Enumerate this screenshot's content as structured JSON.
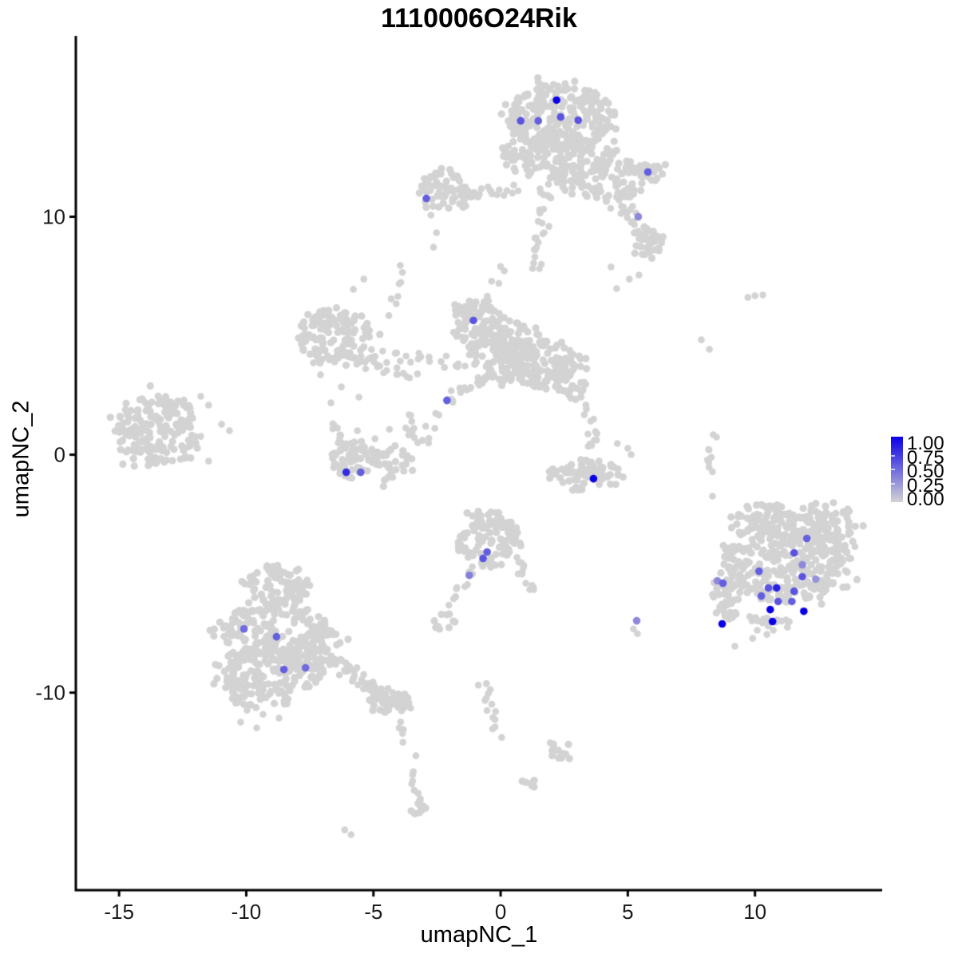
{
  "chart_data": {
    "type": "scatter",
    "title": "1110006O24Rik",
    "xlabel": "umapNC_1",
    "ylabel": "umapNC_2",
    "xlim": [
      -16.7,
      15.0
    ],
    "ylim": [
      -18.3,
      17.6
    ],
    "xticks": [
      "-15",
      "-10",
      "-5",
      "0",
      "5",
      "10"
    ],
    "xtick_values": [
      -15,
      -10,
      -5,
      0,
      5,
      10
    ],
    "yticks": [
      "-10",
      "0",
      "10"
    ],
    "ytick_values": [
      -10,
      0,
      10
    ],
    "grid": "off",
    "legend": {
      "position": "right",
      "tick_labels": [
        "1.00",
        "0.75",
        "0.50",
        "0.25",
        "0.00"
      ],
      "tick_values": [
        1.0,
        0.75,
        0.5,
        0.25,
        0.0
      ]
    },
    "colors": {
      "low": "#d3d3d3",
      "high": "#0a00e8",
      "axis": "#000000",
      "background": "#ffffff"
    },
    "background_clusters": [
      {
        "t": "blob",
        "x": 2.39,
        "y": 14.09,
        "rx": 2.14,
        "ry": 1.51,
        "n": 260
      },
      {
        "t": "blob",
        "x": 2.3,
        "y": 12.58,
        "rx": 2.36,
        "ry": 1.01,
        "n": 130
      },
      {
        "t": "blob",
        "x": 4.03,
        "y": 11.58,
        "rx": 1.73,
        "ry": 0.94,
        "n": 90
      },
      {
        "t": "blob",
        "x": 5.82,
        "y": 11.91,
        "rx": 0.63,
        "ry": 0.47,
        "n": 22
      },
      {
        "t": "chain",
        "x1": 4.5,
        "y1": 10.74,
        "x2": 6.23,
        "y2": 8.56,
        "n": 30,
        "j": 0.35
      },
      {
        "t": "blob",
        "x": 5.75,
        "y": 8.89,
        "rx": 0.69,
        "ry": 0.67,
        "n": 28
      },
      {
        "t": "dots",
        "pts": [
          [
            4.34,
            7.89
          ],
          [
            5.06,
            7.38
          ],
          [
            4.56,
            6.98
          ],
          [
            5.44,
            7.55
          ]
        ]
      },
      {
        "t": "chain",
        "x1": 1.82,
        "y1": 11.41,
        "x2": 1.42,
        "y2": 7.72,
        "n": 26,
        "j": 0.28
      },
      {
        "t": "chain",
        "x1": -2.11,
        "y1": 10.97,
        "x2": 0.57,
        "y2": 11.14,
        "n": 26,
        "j": 0.22
      },
      {
        "t": "blob",
        "x": -2.17,
        "y": 11.17,
        "rx": 1.13,
        "ry": 0.87,
        "n": 60
      },
      {
        "t": "dots",
        "pts": [
          [
            -2.74,
            10.07
          ],
          [
            -2.52,
            9.33
          ],
          [
            -2.64,
            8.72
          ]
        ]
      },
      {
        "t": "blob",
        "x": -0.91,
        "y": 5.54,
        "rx": 1.01,
        "ry": 1.01,
        "n": 90
      },
      {
        "t": "blob",
        "x": 0.03,
        "y": 4.09,
        "rx": 1.42,
        "ry": 1.01,
        "n": 100
      },
      {
        "t": "blob",
        "x": 1.76,
        "y": 3.76,
        "rx": 1.32,
        "ry": 1.01,
        "n": 90
      },
      {
        "t": "blob",
        "x": 0.75,
        "y": 4.87,
        "rx": 1.1,
        "ry": 0.74,
        "n": 45
      },
      {
        "t": "blob",
        "x": 2.8,
        "y": 3.36,
        "rx": 0.79,
        "ry": 1.07,
        "n": 40
      },
      {
        "t": "chain",
        "x1": 3.4,
        "y1": 2.18,
        "x2": 3.62,
        "y2": 0.4,
        "n": 8,
        "j": 0.2
      },
      {
        "t": "chain",
        "x1": -2.11,
        "y1": 2.28,
        "x2": -0.6,
        "y2": 3.29,
        "n": 20,
        "j": 0.25
      },
      {
        "t": "chain",
        "x1": -2.48,
        "y1": 1.68,
        "x2": -3.11,
        "y2": 0.47,
        "n": 7,
        "j": 0.2
      },
      {
        "t": "blob",
        "x": -6.51,
        "y": 5.03,
        "rx": 1.45,
        "ry": 1.34,
        "n": 130
      },
      {
        "t": "chain",
        "x1": -5.66,
        "y1": 3.86,
        "x2": -3.3,
        "y2": 3.36,
        "n": 16,
        "j": 0.2
      },
      {
        "t": "chain",
        "x1": -5.25,
        "y1": 4.19,
        "x2": -1.16,
        "y2": 3.86,
        "n": 24,
        "j": 0.3
      },
      {
        "t": "dots",
        "pts": [
          [
            -7.08,
            3.36
          ],
          [
            -6.26,
            2.85
          ],
          [
            -5.57,
            2.42
          ],
          [
            -6.67,
            2.18
          ],
          [
            -7.36,
            3.86
          ]
        ]
      },
      {
        "t": "chain",
        "x1": -3.84,
        "y1": 8.05,
        "x2": -4.31,
        "y2": 5.7,
        "n": 8,
        "j": 0.2
      },
      {
        "t": "chain",
        "x1": 0.09,
        "y1": 8.05,
        "x2": -0.63,
        "y2": 5.97,
        "n": 7,
        "j": 0.2
      },
      {
        "t": "dots",
        "pts": [
          [
            -5.79,
            6.95
          ],
          [
            -5.38,
            7.38
          ]
        ]
      },
      {
        "t": "blob",
        "x": -13.52,
        "y": 1.01,
        "rx": 1.7,
        "ry": 1.48,
        "n": 170
      },
      {
        "t": "dots",
        "pts": [
          [
            -11.79,
            2.45
          ],
          [
            -11.48,
            2.08
          ],
          [
            -12.23,
            1.28
          ],
          [
            -10.97,
            1.28
          ],
          [
            -11.79,
            0.77
          ],
          [
            -12.39,
            -0.07
          ],
          [
            -11.48,
            -0.27
          ],
          [
            -10.66,
            1.01
          ]
        ]
      },
      {
        "t": "blob",
        "x": -5.09,
        "y": -0.27,
        "rx": 1.64,
        "ry": 0.87,
        "n": 95
      },
      {
        "t": "chain",
        "x1": -6.6,
        "y1": 1.44,
        "x2": -6.19,
        "y2": 0.34,
        "n": 10,
        "j": 0.18
      },
      {
        "t": "chain",
        "x1": -3.74,
        "y1": 1.64,
        "x2": -3.43,
        "y2": 0.47,
        "n": 10,
        "j": 0.18
      },
      {
        "t": "dots",
        "pts": [
          [
            -5.63,
            1.01
          ],
          [
            -4.94,
            0.67
          ],
          [
            -4.37,
            1.07
          ]
        ]
      },
      {
        "t": "blob",
        "x": 3.4,
        "y": -0.84,
        "rx": 1.51,
        "ry": 0.67,
        "n": 80
      },
      {
        "t": "chain",
        "x1": 3.55,
        "y1": 0.34,
        "x2": 3.8,
        "y2": 0.84,
        "n": 5,
        "j": 0.15
      },
      {
        "t": "dots",
        "pts": [
          [
            4.59,
            0.47
          ],
          [
            5.0,
            0.27
          ],
          [
            5.13,
            0.0
          ]
        ]
      },
      {
        "t": "blob",
        "x": -0.47,
        "y": -3.52,
        "rx": 1.26,
        "ry": 1.21,
        "n": 110
      },
      {
        "t": "chain",
        "x1": 0.57,
        "y1": -4.36,
        "x2": 1.29,
        "y2": -5.77,
        "n": 13,
        "j": 0.2
      },
      {
        "t": "chain",
        "x1": -1.1,
        "y1": -4.77,
        "x2": -2.17,
        "y2": -6.44,
        "n": 11,
        "j": 0.18
      },
      {
        "t": "blob",
        "x": -2.17,
        "y": -6.98,
        "rx": 0.5,
        "ry": 0.47,
        "n": 11
      },
      {
        "t": "blob",
        "x": -8.71,
        "y": -5.47,
        "rx": 1.26,
        "ry": 0.87,
        "n": 80
      },
      {
        "t": "blob",
        "x": -8.87,
        "y": -7.38,
        "rx": 2.08,
        "ry": 1.21,
        "n": 180
      },
      {
        "t": "blob",
        "x": -9.09,
        "y": -9.06,
        "rx": 2.2,
        "ry": 1.01,
        "n": 150
      },
      {
        "t": "blob",
        "x": -9.34,
        "y": -10.13,
        "rx": 1.45,
        "ry": 0.54,
        "n": 45
      },
      {
        "t": "blob",
        "x": -7.08,
        "y": -8.12,
        "rx": 0.94,
        "ry": 1.01,
        "n": 60
      },
      {
        "t": "chain",
        "x1": -6.51,
        "y1": -8.79,
        "x2": -3.74,
        "y2": -10.6,
        "n": 60,
        "j": 0.3
      },
      {
        "t": "blob",
        "x": -4.43,
        "y": -10.34,
        "rx": 0.88,
        "ry": 0.6,
        "n": 35
      },
      {
        "t": "dots",
        "pts": [
          [
            -9.97,
            -10.74
          ],
          [
            -9.34,
            -10.91
          ],
          [
            -8.71,
            -11.07
          ],
          [
            -10.22,
            -11.24
          ],
          [
            -9.59,
            -11.48
          ]
        ]
      },
      {
        "t": "chain",
        "x1": -3.99,
        "y1": -11.07,
        "x2": -3.84,
        "y2": -12.08,
        "n": 5,
        "j": 0.12
      },
      {
        "t": "dots",
        "pts": [
          [
            -3.33,
            -12.65
          ],
          [
            -6.13,
            -15.77
          ],
          [
            -5.88,
            -15.97
          ]
        ]
      },
      {
        "t": "chain",
        "x1": -3.62,
        "y1": -13.26,
        "x2": -3.11,
        "y2": -14.83,
        "n": 9,
        "j": 0.15
      },
      {
        "t": "blob",
        "x": -3.17,
        "y": -14.86,
        "rx": 0.38,
        "ry": 0.34,
        "n": 9
      },
      {
        "t": "chain",
        "x1": -0.75,
        "y1": -9.5,
        "x2": -0.06,
        "y2": -11.81,
        "n": 14,
        "j": 0.2
      },
      {
        "t": "blob",
        "x": 2.39,
        "y": -12.45,
        "rx": 0.57,
        "ry": 0.4,
        "n": 12
      },
      {
        "t": "blob",
        "x": 1.1,
        "y": -13.76,
        "rx": 0.44,
        "ry": 0.27,
        "n": 7
      },
      {
        "t": "dots",
        "pts": [
          [
            1.95,
            -12.11
          ]
        ]
      },
      {
        "t": "dots",
        "pts": [
          [
            9.72,
            6.61
          ],
          [
            10.0,
            6.68
          ],
          [
            10.31,
            6.71
          ],
          [
            7.89,
            4.83
          ],
          [
            8.21,
            4.43
          ],
          [
            8.36,
            0.84
          ],
          [
            8.49,
            0.74
          ],
          [
            8.33,
            -1.74
          ]
        ]
      },
      {
        "t": "chain",
        "x1": 8.14,
        "y1": 0.4,
        "x2": 8.27,
        "y2": -0.74,
        "n": 7,
        "j": 0.1
      },
      {
        "t": "blob",
        "x": 11.26,
        "y": -4.36,
        "rx": 2.52,
        "ry": 1.85,
        "n": 330
      },
      {
        "t": "blob",
        "x": 12.67,
        "y": -2.85,
        "rx": 1.32,
        "ry": 0.84,
        "n": 70
      },
      {
        "t": "blob",
        "x": 10.31,
        "y": -2.68,
        "rx": 1.1,
        "ry": 0.67,
        "n": 50
      },
      {
        "t": "blob",
        "x": 8.96,
        "y": -6.11,
        "rx": 0.75,
        "ry": 0.87,
        "n": 40
      },
      {
        "t": "chain",
        "x1": 9.69,
        "y1": -6.88,
        "x2": 11.42,
        "y2": -7.15,
        "n": 18,
        "j": 0.18
      },
      {
        "t": "dots",
        "pts": [
          [
            13.68,
            -3.36
          ],
          [
            13.93,
            -3.86
          ],
          [
            13.77,
            -4.36
          ],
          [
            13.55,
            -4.87
          ]
        ]
      },
      {
        "t": "dots",
        "pts": [
          [
            10.09,
            -7.38
          ],
          [
            10.47,
            -7.55
          ],
          [
            10.72,
            -7.38
          ],
          [
            9.21,
            -8.05
          ],
          [
            9.91,
            -7.72
          ]
        ]
      },
      {
        "t": "dots",
        "pts": [
          [
            5.22,
            -7.32
          ],
          [
            5.38,
            -7.52
          ]
        ]
      }
    ],
    "expressing_cells": [
      {
        "x": 2.2,
        "y": 14.9,
        "value": 1.0
      },
      {
        "x": 0.79,
        "y": 14.03,
        "value": 0.6
      },
      {
        "x": 1.48,
        "y": 14.03,
        "value": 0.55
      },
      {
        "x": 2.36,
        "y": 14.19,
        "value": 0.6
      },
      {
        "x": 3.05,
        "y": 14.06,
        "value": 0.6
      },
      {
        "x": 5.79,
        "y": 11.88,
        "value": 0.55
      },
      {
        "x": -2.92,
        "y": 10.77,
        "value": 0.55
      },
      {
        "x": 5.41,
        "y": 10.0,
        "value": 0.35
      },
      {
        "x": -1.07,
        "y": 5.64,
        "value": 0.6
      },
      {
        "x": -2.11,
        "y": 2.28,
        "value": 0.55
      },
      {
        "x": -6.07,
        "y": -0.74,
        "value": 0.8
      },
      {
        "x": -5.5,
        "y": -0.74,
        "value": 0.55
      },
      {
        "x": 3.65,
        "y": -1.01,
        "value": 1.0
      },
      {
        "x": -0.53,
        "y": -4.09,
        "value": 0.55
      },
      {
        "x": -0.69,
        "y": -4.36,
        "value": 0.6
      },
      {
        "x": -1.23,
        "y": -5.07,
        "value": 0.4
      },
      {
        "x": -10.09,
        "y": -7.32,
        "value": 0.5
      },
      {
        "x": -8.81,
        "y": -7.65,
        "value": 0.55
      },
      {
        "x": -8.52,
        "y": -9.03,
        "value": 0.55
      },
      {
        "x": -7.67,
        "y": -8.96,
        "value": 0.5
      },
      {
        "x": 5.35,
        "y": -6.98,
        "value": 0.35
      },
      {
        "x": 12.04,
        "y": -3.52,
        "value": 0.55
      },
      {
        "x": 11.54,
        "y": -4.13,
        "value": 0.6
      },
      {
        "x": 11.86,
        "y": -4.63,
        "value": 0.35
      },
      {
        "x": 10.16,
        "y": -4.9,
        "value": 0.55
      },
      {
        "x": 11.86,
        "y": -5.13,
        "value": 0.6
      },
      {
        "x": 12.39,
        "y": -5.23,
        "value": 0.3
      },
      {
        "x": 8.52,
        "y": -5.3,
        "value": 0.35
      },
      {
        "x": 8.74,
        "y": -5.4,
        "value": 0.55
      },
      {
        "x": 10.53,
        "y": -5.6,
        "value": 0.6
      },
      {
        "x": 10.85,
        "y": -5.6,
        "value": 0.85
      },
      {
        "x": 11.54,
        "y": -5.74,
        "value": 0.6
      },
      {
        "x": 10.25,
        "y": -5.94,
        "value": 0.55
      },
      {
        "x": 10.91,
        "y": -6.17,
        "value": 0.6
      },
      {
        "x": 11.45,
        "y": -6.17,
        "value": 0.55
      },
      {
        "x": 10.6,
        "y": -6.51,
        "value": 1.0
      },
      {
        "x": 11.92,
        "y": -6.58,
        "value": 1.0
      },
      {
        "x": 10.69,
        "y": -7.01,
        "value": 1.0
      },
      {
        "x": 8.71,
        "y": -7.11,
        "value": 1.0
      }
    ]
  }
}
